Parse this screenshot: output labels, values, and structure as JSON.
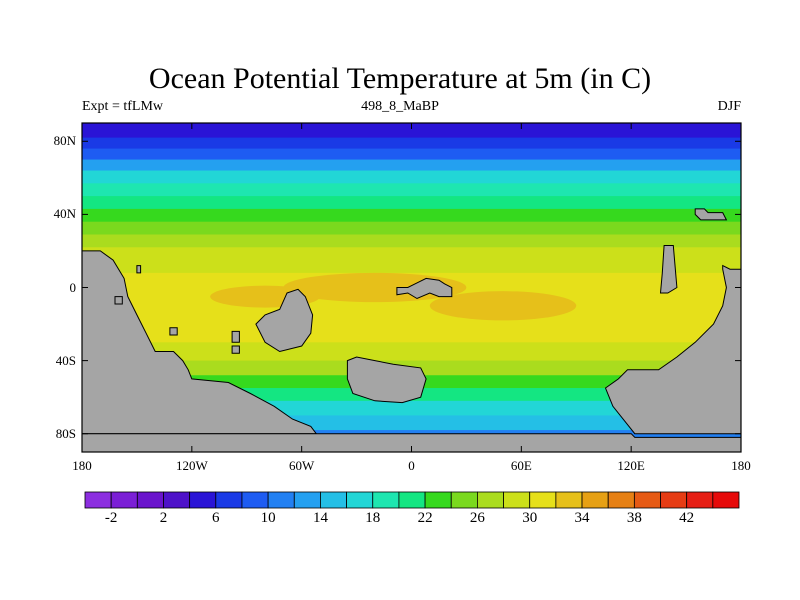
{
  "figure": {
    "title": "Ocean Potential Temperature at 5m (in C)",
    "left_string": "Expt = tfLMw",
    "center_string": "498_8_MaBP",
    "right_string": "DJF"
  },
  "map": {
    "projection": "cylindrical-equidistant",
    "lon_range": [
      -180,
      180
    ],
    "lat_range": [
      -90,
      90
    ],
    "land_color": "#a5a5a5",
    "x_ticks": [
      {
        "lon": -180,
        "label": "180"
      },
      {
        "lon": -120,
        "label": "120W"
      },
      {
        "lon": -60,
        "label": "60W"
      },
      {
        "lon": 0,
        "label": "0"
      },
      {
        "lon": 60,
        "label": "60E"
      },
      {
        "lon": 120,
        "label": "120E"
      },
      {
        "lon": 180,
        "label": "180"
      }
    ],
    "y_ticks": [
      {
        "lat": 80,
        "label": "80N"
      },
      {
        "lat": 40,
        "label": "40N"
      },
      {
        "lat": 0,
        "label": "0"
      },
      {
        "lat": -40,
        "label": "40S"
      },
      {
        "lat": -80,
        "label": "80S"
      }
    ],
    "temperature_bands_by_lat": [
      {
        "lat": 90,
        "temp": 4
      },
      {
        "lat": 82,
        "temp": 6
      },
      {
        "lat": 76,
        "temp": 9
      },
      {
        "lat": 70,
        "temp": 13
      },
      {
        "lat": 64,
        "temp": 16
      },
      {
        "lat": 57,
        "temp": 19
      },
      {
        "lat": 50,
        "temp": 21
      },
      {
        "lat": 43,
        "temp": 23
      },
      {
        "lat": 36,
        "temp": 25
      },
      {
        "lat": 29,
        "temp": 27
      },
      {
        "lat": 22,
        "temp": 28
      },
      {
        "lat": 15,
        "temp": 29.5
      },
      {
        "lat": 8,
        "temp": 30.5
      },
      {
        "lat": 0,
        "temp": 31
      },
      {
        "lat": -10,
        "temp": 31
      },
      {
        "lat": -20,
        "temp": 30
      },
      {
        "lat": -30,
        "temp": 28
      },
      {
        "lat": -40,
        "temp": 26
      },
      {
        "lat": -48,
        "temp": 23
      },
      {
        "lat": -55,
        "temp": 20
      },
      {
        "lat": -62,
        "temp": 17
      },
      {
        "lat": -70,
        "temp": 14
      },
      {
        "lat": -78,
        "temp": 11
      },
      {
        "lat": -82,
        "temp": 10
      }
    ],
    "warm_pools": [
      {
        "lon": -20,
        "lat": 0,
        "rlon": 50,
        "rlat": 8,
        "temp": 33
      },
      {
        "lon": -80,
        "lat": -5,
        "rlon": 30,
        "rlat": 6,
        "temp": 32.5
      },
      {
        "lon": 50,
        "lat": -10,
        "rlon": 40,
        "rlat": 8,
        "temp": 32
      }
    ],
    "land_polygons": [
      {
        "name": "western-continent",
        "points": [
          [
            -180,
            20
          ],
          [
            -170,
            20
          ],
          [
            -163,
            15
          ],
          [
            -157,
            5
          ],
          [
            -155,
            -5
          ],
          [
            -150,
            -15
          ],
          [
            -145,
            -25
          ],
          [
            -140,
            -35
          ],
          [
            -130,
            -35
          ],
          [
            -125,
            -40
          ],
          [
            -122,
            -45
          ],
          [
            -120,
            -50
          ],
          [
            -100,
            -52
          ],
          [
            -88,
            -58
          ],
          [
            -75,
            -65
          ],
          [
            -65,
            -72
          ],
          [
            -55,
            -76
          ],
          [
            -52,
            -80
          ],
          [
            -180,
            -80
          ]
        ]
      },
      {
        "name": "south-polar-continent",
        "points": [
          [
            -180,
            -80
          ],
          [
            120,
            -80
          ],
          [
            122,
            -82
          ],
          [
            180,
            -82
          ],
          [
            180,
            -90
          ],
          [
            -180,
            -90
          ]
        ]
      },
      {
        "name": "eastern-continent",
        "points": [
          [
            180,
            10
          ],
          [
            174,
            10
          ],
          [
            170,
            12
          ],
          [
            170,
            10
          ],
          [
            172,
            0
          ],
          [
            170,
            -10
          ],
          [
            165,
            -20
          ],
          [
            155,
            -30
          ],
          [
            145,
            -38
          ],
          [
            135,
            -45
          ],
          [
            118,
            -45
          ],
          [
            113,
            -50
          ],
          [
            106,
            -55
          ],
          [
            110,
            -65
          ],
          [
            118,
            -75
          ],
          [
            122,
            -80
          ],
          [
            180,
            -80
          ]
        ]
      },
      {
        "name": "island-north-pacific-east",
        "points": [
          [
            155,
            43
          ],
          [
            160,
            43
          ],
          [
            162,
            41
          ],
          [
            170,
            41
          ],
          [
            172,
            37
          ],
          [
            158,
            37
          ],
          [
            155,
            40
          ]
        ]
      },
      {
        "name": "island-east-archipelago",
        "points": [
          [
            138,
            23
          ],
          [
            143,
            23
          ],
          [
            145,
            0
          ],
          [
            140,
            -3
          ],
          [
            136,
            -3
          ],
          [
            137,
            8
          ]
        ]
      },
      {
        "name": "island-mid-south",
        "points": [
          [
            -68,
            -3
          ],
          [
            -62,
            -1
          ],
          [
            -58,
            -5
          ],
          [
            -54,
            -15
          ],
          [
            -55,
            -25
          ],
          [
            -60,
            -32
          ],
          [
            -72,
            -35
          ],
          [
            -80,
            -30
          ],
          [
            -85,
            -20
          ],
          [
            -80,
            -15
          ],
          [
            -72,
            -12
          ]
        ]
      },
      {
        "name": "island-south-atlantic",
        "points": [
          [
            -35,
            -40
          ],
          [
            -30,
            -38
          ],
          [
            -20,
            -40
          ],
          [
            -10,
            -42
          ],
          [
            5,
            -44
          ],
          [
            8,
            -50
          ],
          [
            5,
            -60
          ],
          [
            -5,
            -63
          ],
          [
            -20,
            -62
          ],
          [
            -32,
            -58
          ],
          [
            -35,
            -50
          ]
        ]
      },
      {
        "name": "island-east-equatorial",
        "points": [
          [
            -8,
            0
          ],
          [
            -2,
            0
          ],
          [
            2,
            2
          ],
          [
            8,
            5
          ],
          [
            15,
            4
          ],
          [
            18,
            2
          ],
          [
            22,
            0
          ],
          [
            22,
            -5
          ],
          [
            15,
            -5
          ],
          [
            10,
            -3
          ],
          [
            3,
            -6
          ],
          [
            -2,
            -3
          ],
          [
            -8,
            -4
          ]
        ]
      },
      {
        "name": "islet-1",
        "points": [
          [
            -150,
            12
          ],
          [
            -148,
            12
          ],
          [
            -148,
            8
          ],
          [
            -150,
            8
          ]
        ]
      },
      {
        "name": "islet-2",
        "points": [
          [
            -132,
            -22
          ],
          [
            -128,
            -22
          ],
          [
            -128,
            -26
          ],
          [
            -132,
            -26
          ]
        ]
      },
      {
        "name": "islet-3",
        "points": [
          [
            -98,
            -24
          ],
          [
            -94,
            -24
          ],
          [
            -94,
            -30
          ],
          [
            -98,
            -30
          ]
        ]
      },
      {
        "name": "islet-4",
        "points": [
          [
            -98,
            -32
          ],
          [
            -94,
            -32
          ],
          [
            -94,
            -36
          ],
          [
            -98,
            -36
          ]
        ]
      },
      {
        "name": "islet-5",
        "points": [
          [
            -162,
            -5
          ],
          [
            -158,
            -5
          ],
          [
            -158,
            -9
          ],
          [
            -162,
            -9
          ]
        ]
      }
    ]
  },
  "colorbar": {
    "colors": [
      "#8c2ee0",
      "#7b1fd6",
      "#6a14cc",
      "#4e12c9",
      "#2a14d6",
      "#1a3ae6",
      "#1e5cf2",
      "#2280f2",
      "#24a0f0",
      "#24bfe6",
      "#22d6d6",
      "#1ee6b0",
      "#14e682",
      "#36d91e",
      "#7ad91e",
      "#aadc1e",
      "#cce01a",
      "#e6e01a",
      "#e6c01a",
      "#e6a014",
      "#e68014",
      "#e65a14",
      "#e63c14",
      "#e61e14",
      "#e60a0a"
    ],
    "min": -4,
    "max": 46,
    "step": 2,
    "labels": [
      {
        "value": -2,
        "text": "-2"
      },
      {
        "value": 2,
        "text": "2"
      },
      {
        "value": 6,
        "text": "6"
      },
      {
        "value": 10,
        "text": "10"
      },
      {
        "value": 14,
        "text": "14"
      },
      {
        "value": 18,
        "text": "18"
      },
      {
        "value": 22,
        "text": "22"
      },
      {
        "value": 26,
        "text": "26"
      },
      {
        "value": 30,
        "text": "30"
      },
      {
        "value": 34,
        "text": "34"
      },
      {
        "value": 38,
        "text": "38"
      },
      {
        "value": 42,
        "text": "42"
      }
    ]
  }
}
